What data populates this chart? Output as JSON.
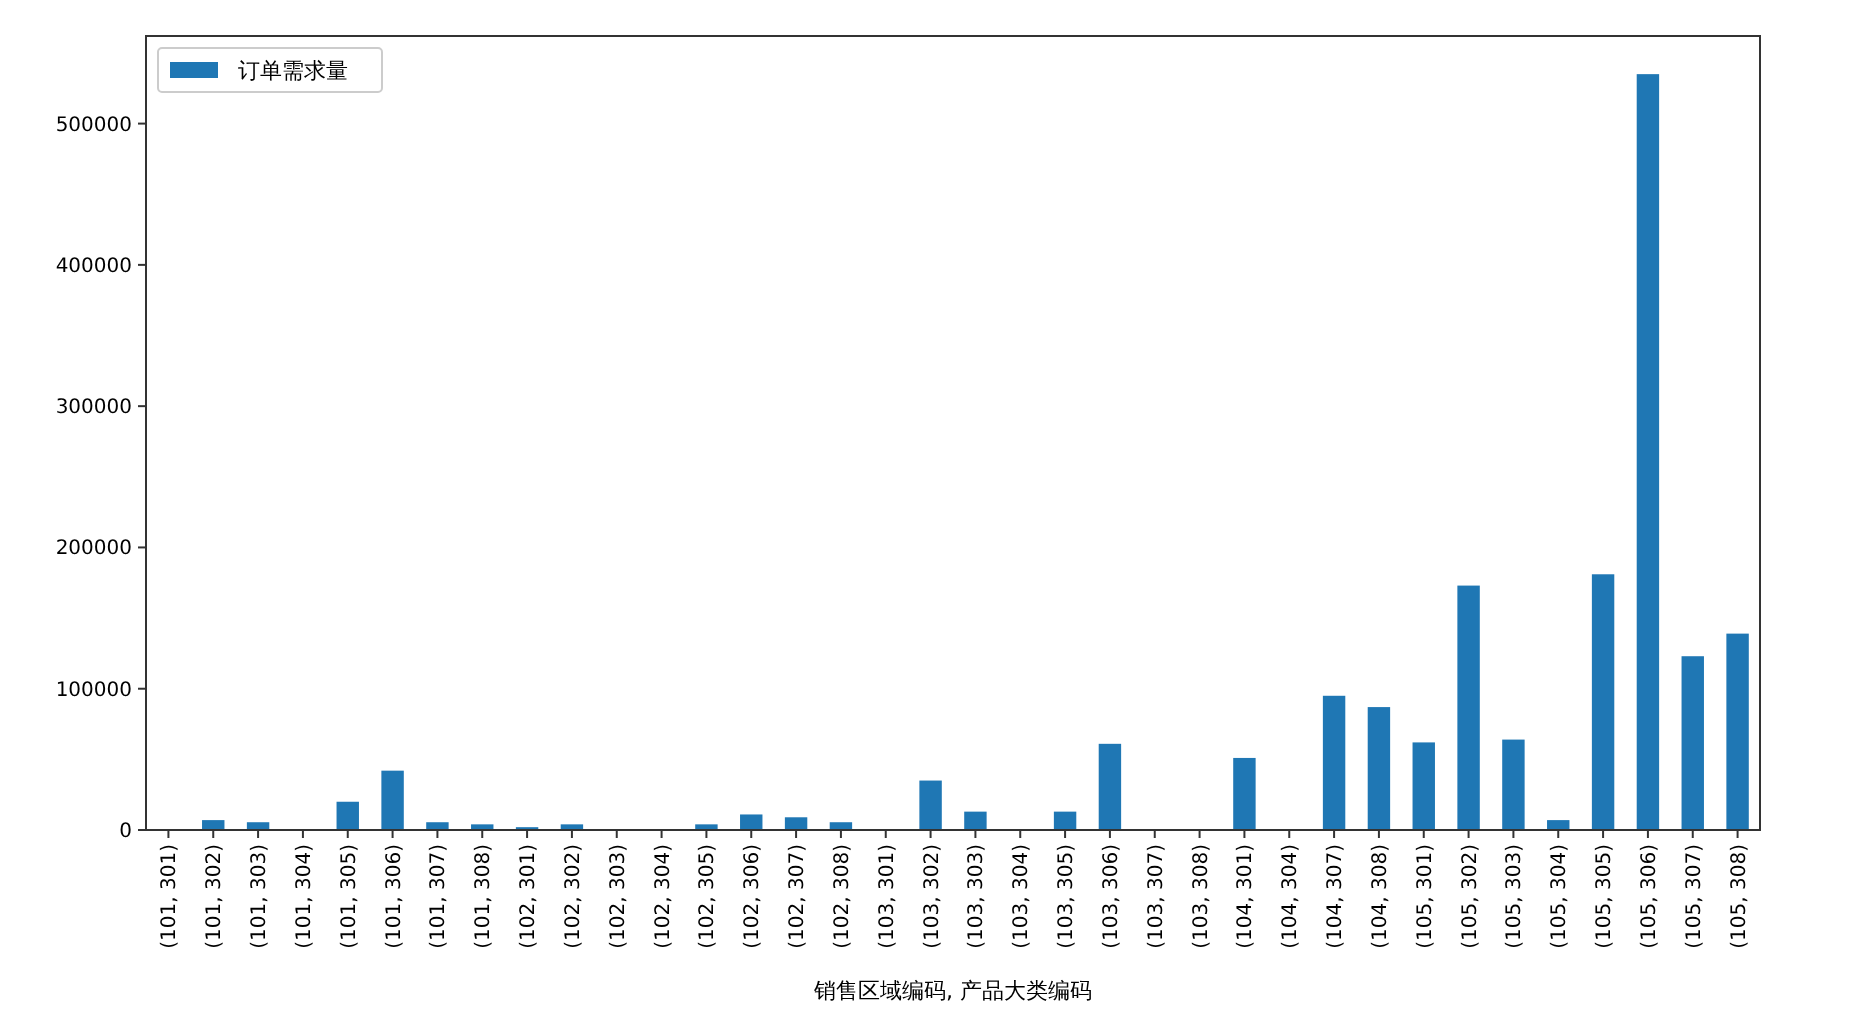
{
  "chart_data": {
    "type": "bar",
    "xlabel": "销售区域编码, 产品大类编码",
    "categories": [
      "(101, 301)",
      "(101, 302)",
      "(101, 303)",
      "(101, 304)",
      "(101, 305)",
      "(101, 306)",
      "(101, 307)",
      "(101, 308)",
      "(102, 301)",
      "(102, 302)",
      "(102, 303)",
      "(102, 304)",
      "(102, 305)",
      "(102, 306)",
      "(102, 307)",
      "(102, 308)",
      "(103, 301)",
      "(103, 302)",
      "(103, 303)",
      "(103, 304)",
      "(103, 305)",
      "(103, 306)",
      "(103, 307)",
      "(103, 308)",
      "(104, 301)",
      "(104, 304)",
      "(104, 307)",
      "(104, 308)",
      "(105, 301)",
      "(105, 302)",
      "(105, 303)",
      "(105, 304)",
      "(105, 305)",
      "(105, 306)",
      "(105, 307)",
      "(105, 308)"
    ],
    "series": [
      {
        "name": "订单需求量",
        "color": "#1f77b4",
        "values": [
          0,
          7000,
          5500,
          0,
          20000,
          42000,
          5500,
          4000,
          2000,
          4000,
          0,
          0,
          4000,
          11000,
          9000,
          5500,
          0,
          35000,
          13000,
          0,
          13000,
          61000,
          0,
          0,
          51000,
          0,
          95000,
          87000,
          62000,
          173000,
          64000,
          7000,
          181000,
          535000,
          123000,
          139000
        ]
      }
    ],
    "ylim": [
      0,
      562000
    ],
    "yticks": [
      0,
      100000,
      200000,
      300000,
      400000,
      500000
    ],
    "legend": "top left"
  }
}
